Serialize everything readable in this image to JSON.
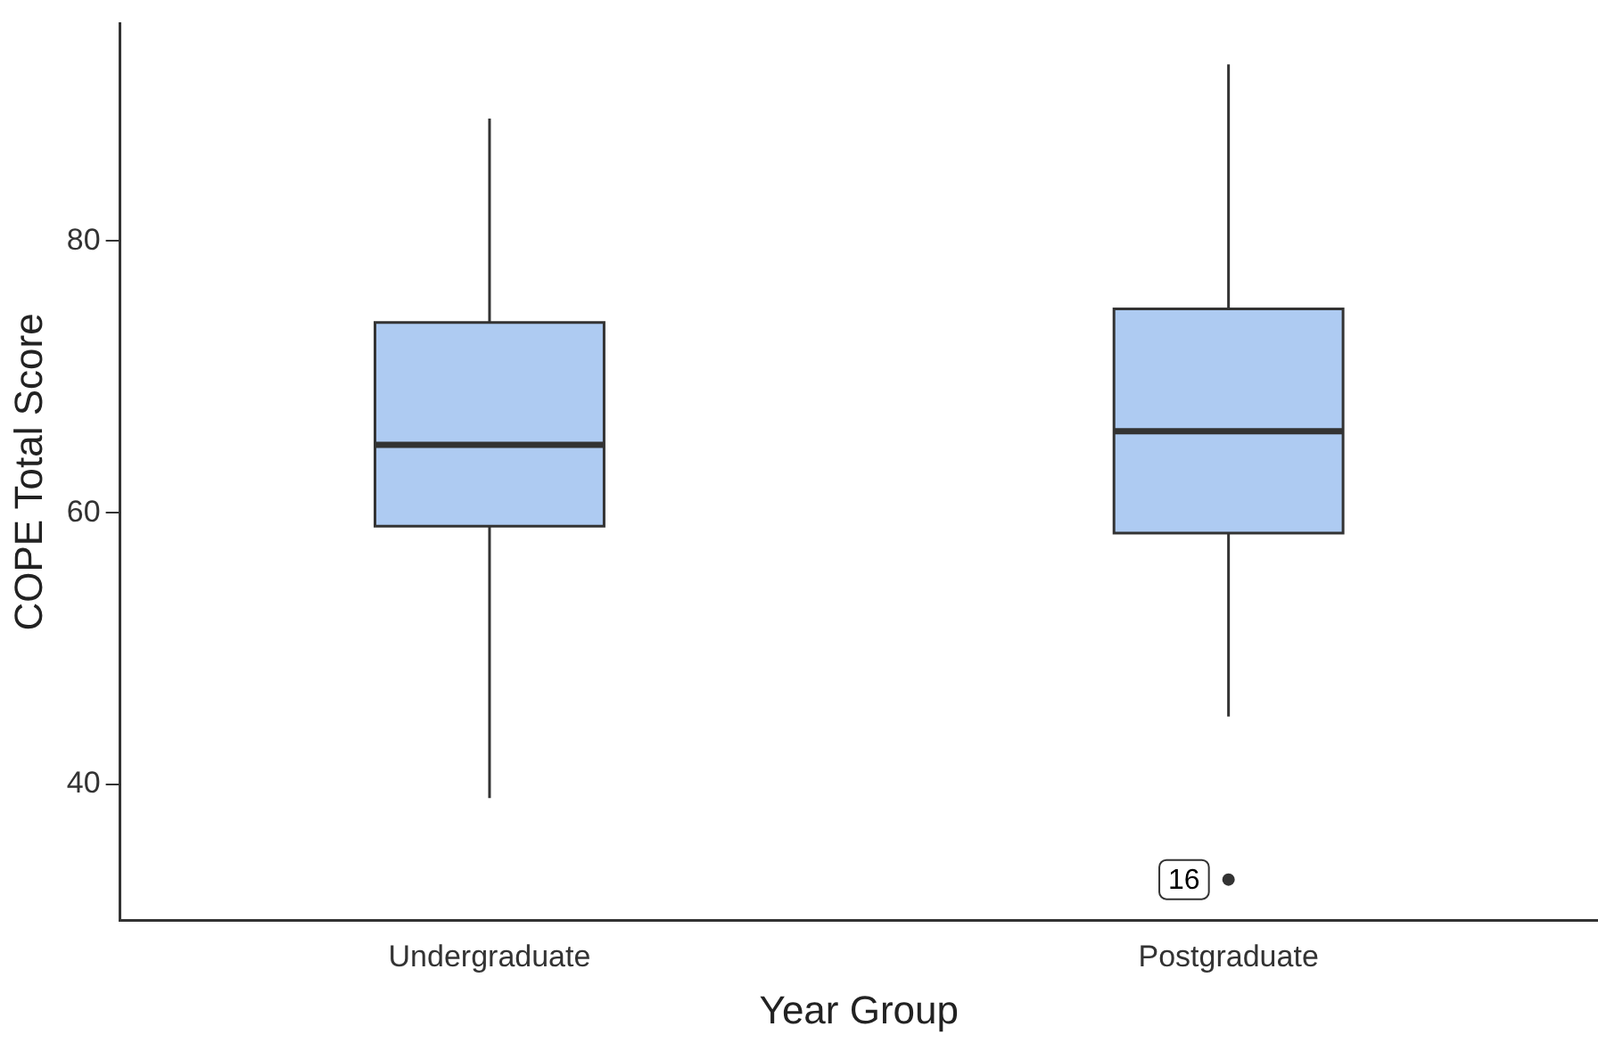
{
  "chart_data": {
    "type": "box",
    "xlabel": "Year Group",
    "ylabel": "COPE Total Score",
    "categories": [
      "Undergraduate",
      "Postgraduate"
    ],
    "color": "#aecbf2",
    "boxes": [
      {
        "low": 39,
        "q1": 59,
        "median": 65,
        "q3": 74,
        "high": 89
      },
      {
        "low": 45,
        "q1": 58.5,
        "median": 66,
        "q3": 75,
        "high": 93,
        "outliers": [
          33
        ]
      }
    ],
    "ylim": [
      30,
      96
    ],
    "yticks": [
      40,
      60,
      80
    ],
    "annotations": [
      "16"
    ]
  }
}
